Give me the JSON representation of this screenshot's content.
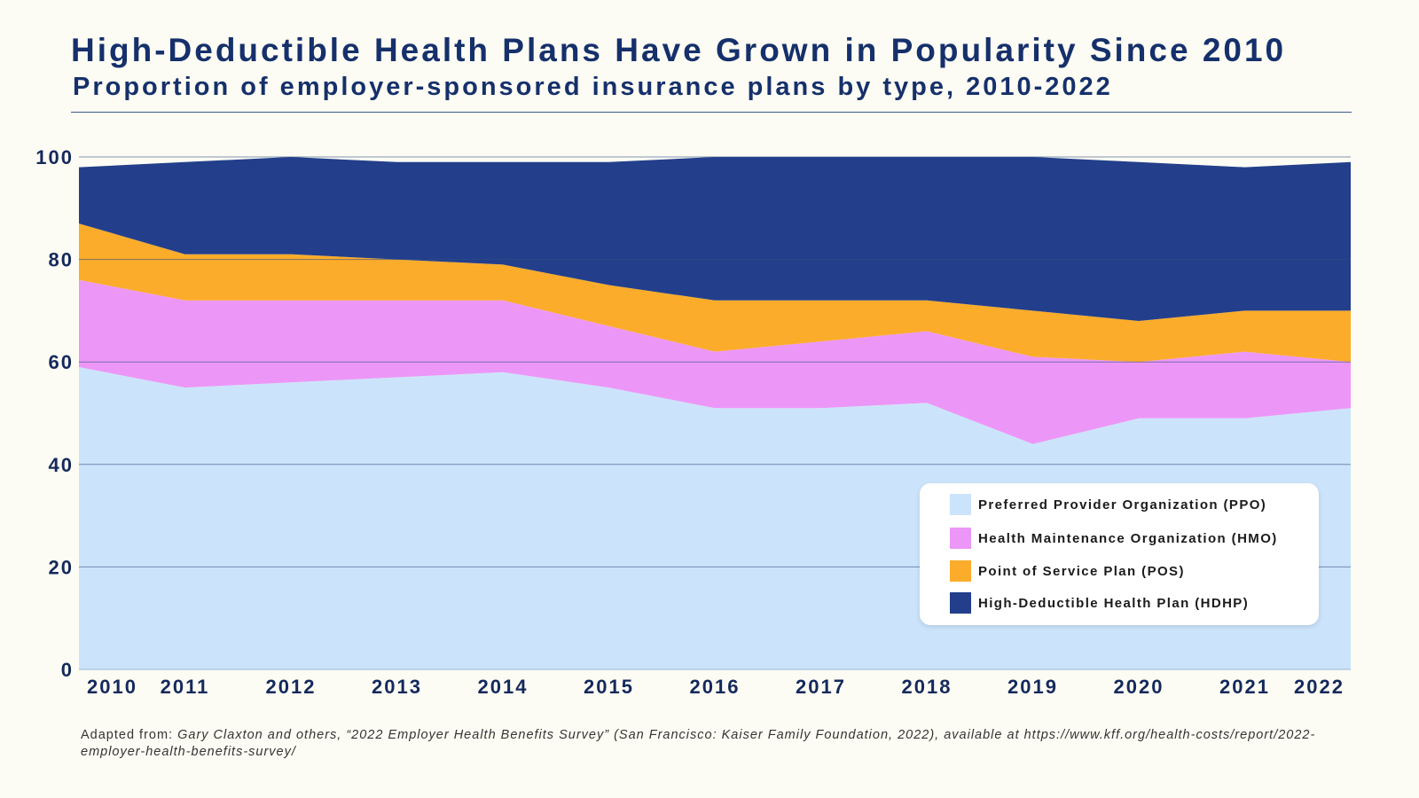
{
  "chart_data": {
    "type": "area",
    "stacked": true,
    "title": "High-Deductible Health Plans Have Grown in Popularity Since 2010",
    "subtitle": "Proportion of employer-sponsored insurance plans by type, 2010-2022",
    "xlabel": "",
    "ylabel": "",
    "ylim": [
      0,
      100
    ],
    "yticks": [
      "0",
      "20",
      "40",
      "60",
      "80",
      "100"
    ],
    "x": [
      "2010",
      "2011",
      "2012",
      "2013",
      "2014",
      "2015",
      "2016",
      "2017",
      "2018",
      "2019",
      "2020",
      "2021",
      "2022"
    ],
    "grid": true,
    "legend_position": "bottom-right",
    "series": [
      {
        "name": "Preferred Provider Organization (PPO)",
        "color": "#cce4fb",
        "values": [
          59,
          55,
          56,
          57,
          58,
          55,
          51,
          51,
          52,
          44,
          49,
          49,
          51
        ]
      },
      {
        "name": "Health Maintenance Organization (HMO)",
        "color": "#ec97f7",
        "values": [
          17,
          17,
          16,
          15,
          14,
          12,
          11,
          13,
          14,
          17,
          11,
          13,
          9
        ]
      },
      {
        "name": "Point of Service Plan (POS)",
        "color": "#fbac2b",
        "values": [
          11,
          9,
          9,
          8,
          7,
          8,
          10,
          8,
          6,
          9,
          8,
          8,
          10
        ]
      },
      {
        "name": "High-Deductible Health Plan (HDHP)",
        "color": "#233f8c",
        "values": [
          11,
          18,
          19,
          19,
          20,
          24,
          28,
          28,
          28,
          30,
          31,
          28,
          29
        ]
      }
    ]
  },
  "source": {
    "prefix": "Adapted from: ",
    "citation": "Gary Claxton and others, “2022 Employer Health Benefits Survey” (San Francisco: Kaiser Family Foundation, 2022), available at https://www.kff.org/health-costs/report/2022-employer-health-benefits-survey/"
  }
}
